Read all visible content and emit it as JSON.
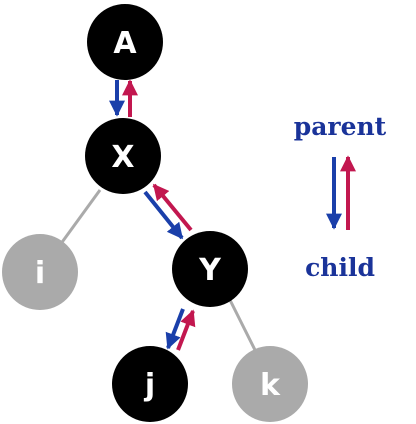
{
  "nodes": {
    "a": {
      "label": "A",
      "state": "active"
    },
    "x": {
      "label": "X",
      "state": "active"
    },
    "y": {
      "label": "Y",
      "state": "active"
    },
    "i": {
      "label": "i",
      "state": "inactive"
    },
    "j": {
      "label": "j",
      "state": "active"
    },
    "k": {
      "label": "k",
      "state": "inactive"
    }
  },
  "legend": {
    "parent_label": "parent",
    "child_label": "child"
  },
  "colors": {
    "active_node": "#000000",
    "inactive_node": "#aaaaaa",
    "edge": "#aaaaaa",
    "down_arrow": "#1a3faa",
    "up_arrow": "#c2174f",
    "legend_text": "#1a3399",
    "node_text": "#ffffff"
  }
}
